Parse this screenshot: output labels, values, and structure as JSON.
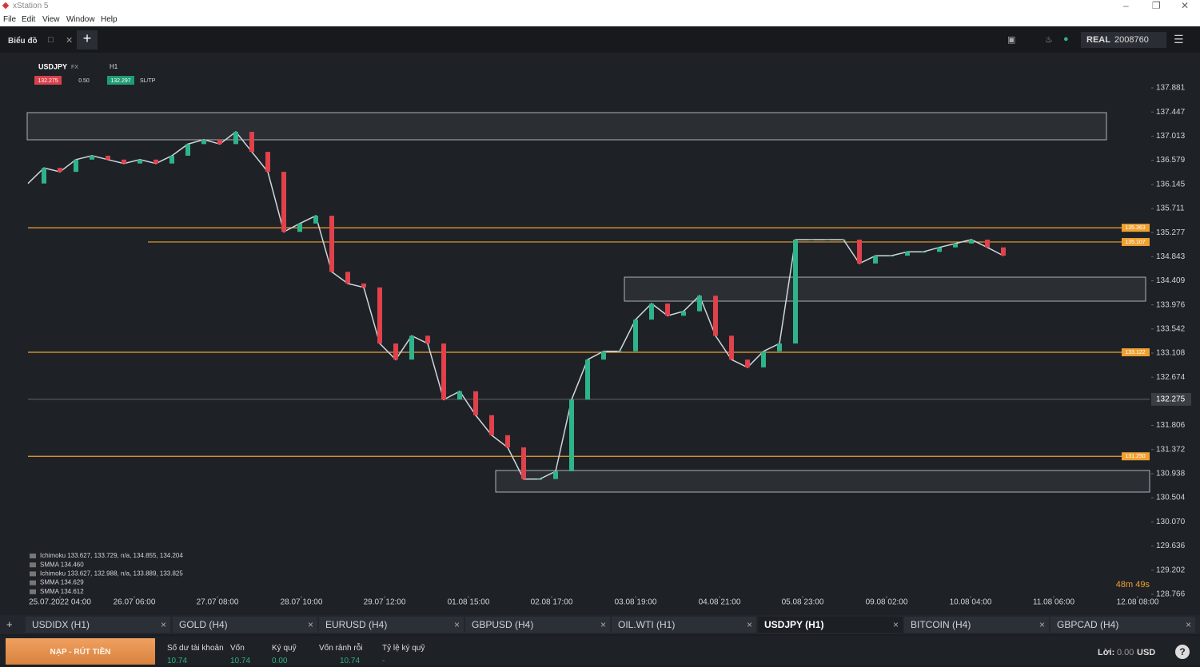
{
  "window": {
    "title": "xStation 5",
    "menu": [
      "File",
      "Edit",
      "View",
      "Window",
      "Help"
    ]
  },
  "toolbar": {
    "view": "Biểu đồ",
    "account_type": "REAL",
    "account_number": "2008760"
  },
  "chart_header": {
    "symbol": "USDJPY",
    "market": "FX",
    "timeframe": "H1",
    "sell": "132.275",
    "volume": "0.50",
    "buy": "132.297",
    "sltp": "SL/TP",
    "timer": "48m 49s",
    "legend": [
      "Ichimoku 133.627, 133.729, n/a, 134.855, 134.204",
      "SMMA 134.460",
      "Ichimoku 133.627, 132.988, n/a, 133.889, 133.825",
      "SMMA 134.629",
      "SMMA 134.612"
    ]
  },
  "chart_data": {
    "type": "line",
    "color": "#cfd6dc",
    "x": [
      0,
      1,
      2,
      3,
      4,
      5,
      6,
      7,
      8,
      9,
      10,
      11,
      12,
      13,
      14,
      15,
      16,
      17,
      18,
      19,
      20,
      21,
      22,
      23,
      24,
      25,
      26,
      27,
      28,
      29,
      30,
      31,
      32,
      33,
      34,
      35,
      36,
      37,
      38,
      39,
      40,
      41,
      42,
      43,
      44,
      45,
      46,
      47,
      48,
      49,
      50,
      51,
      52,
      53,
      54,
      55,
      56,
      57,
      58,
      59,
      60,
      61
    ],
    "values": [
      136.16,
      136.44,
      136.37,
      136.59,
      136.66,
      136.59,
      136.52,
      136.59,
      136.52,
      136.66,
      136.87,
      136.95,
      136.87,
      137.09,
      136.73,
      136.37,
      135.29,
      135.44,
      135.58,
      134.57,
      134.36,
      134.29,
      133.28,
      132.99,
      133.42,
      133.28,
      132.27,
      132.42,
      131.99,
      131.63,
      131.41,
      130.84,
      130.84,
      130.98,
      132.27,
      132.99,
      133.14,
      133.14,
      133.71,
      134.0,
      133.78,
      133.86,
      134.14,
      133.42,
      132.99,
      132.85,
      133.14,
      133.28,
      135.15,
      135.15,
      135.15,
      135.15,
      134.72,
      134.86,
      134.86,
      134.93,
      134.93,
      135.01,
      135.08,
      135.15,
      135.01,
      134.86
    ],
    "xlim": [
      0,
      70
    ],
    "xticks": [
      {
        "value": 2,
        "label": "25.07.2022 04:00"
      },
      {
        "value": 6.65,
        "label": "26.07 06:00"
      },
      {
        "value": 11.85,
        "label": "27.07 08:00"
      },
      {
        "value": 17.1,
        "label": "28.07 10:00"
      },
      {
        "value": 22.3,
        "label": "29.07 12:00"
      },
      {
        "value": 27.55,
        "label": "01.08 15:00"
      },
      {
        "value": 32.75,
        "label": "02.08 17:00"
      },
      {
        "value": 38,
        "label": "03.08 19:00"
      },
      {
        "value": 43.25,
        "label": "04.08 21:00"
      },
      {
        "value": 48.45,
        "label": "05.08 23:00"
      },
      {
        "value": 53.7,
        "label": "09.08 02:00"
      },
      {
        "value": 58.95,
        "label": "10.08 04:00"
      },
      {
        "value": 64.15,
        "label": "11.08 06:00"
      },
      {
        "value": 69.4,
        "label": "12.08 08:00"
      }
    ],
    "ylim": [
      128.392,
      138.514
    ],
    "yticks": [
      137.881,
      137.447,
      137.013,
      136.579,
      136.145,
      135.711,
      135.277,
      134.843,
      134.409,
      133.976,
      133.542,
      133.108,
      132.674,
      131.806,
      131.372,
      130.938,
      130.504,
      {
        "value": 130.07,
        "label": "130.070"
      },
      129.636,
      129.202,
      128.766
    ],
    "levels": [
      135.363,
      135.107,
      133.122,
      {
        "value": 131.25,
        "label": "131.250"
      }
    ],
    "level_color": "#f0a030",
    "last_price": 132.275
  },
  "tabs": [
    "USDIDX (H1)",
    "GOLD (H4)",
    "EURUSD (H4)",
    "GBPUSD (H4)",
    "OIL.WTI (H1)",
    "USDJPY (H1)",
    "BITCOIN (H4)",
    "GBPCAD (H4)"
  ],
  "active_tab": 5,
  "account": {
    "deposit": "NẠP - RÚT TIỀN",
    "fields": [
      {
        "label": "Số dư tài khoản",
        "value": "10.74"
      },
      {
        "label": "Vốn",
        "value": "10.74"
      },
      {
        "label": "Ký quỹ",
        "value": "0.00"
      },
      {
        "label": "Vốn rảnh rỗi",
        "value": "10.74"
      },
      {
        "label": "Tỷ lệ ký quỹ",
        "value": "-"
      }
    ],
    "profit_label": "Lời:",
    "profit": "0.00",
    "currency": "USD"
  }
}
